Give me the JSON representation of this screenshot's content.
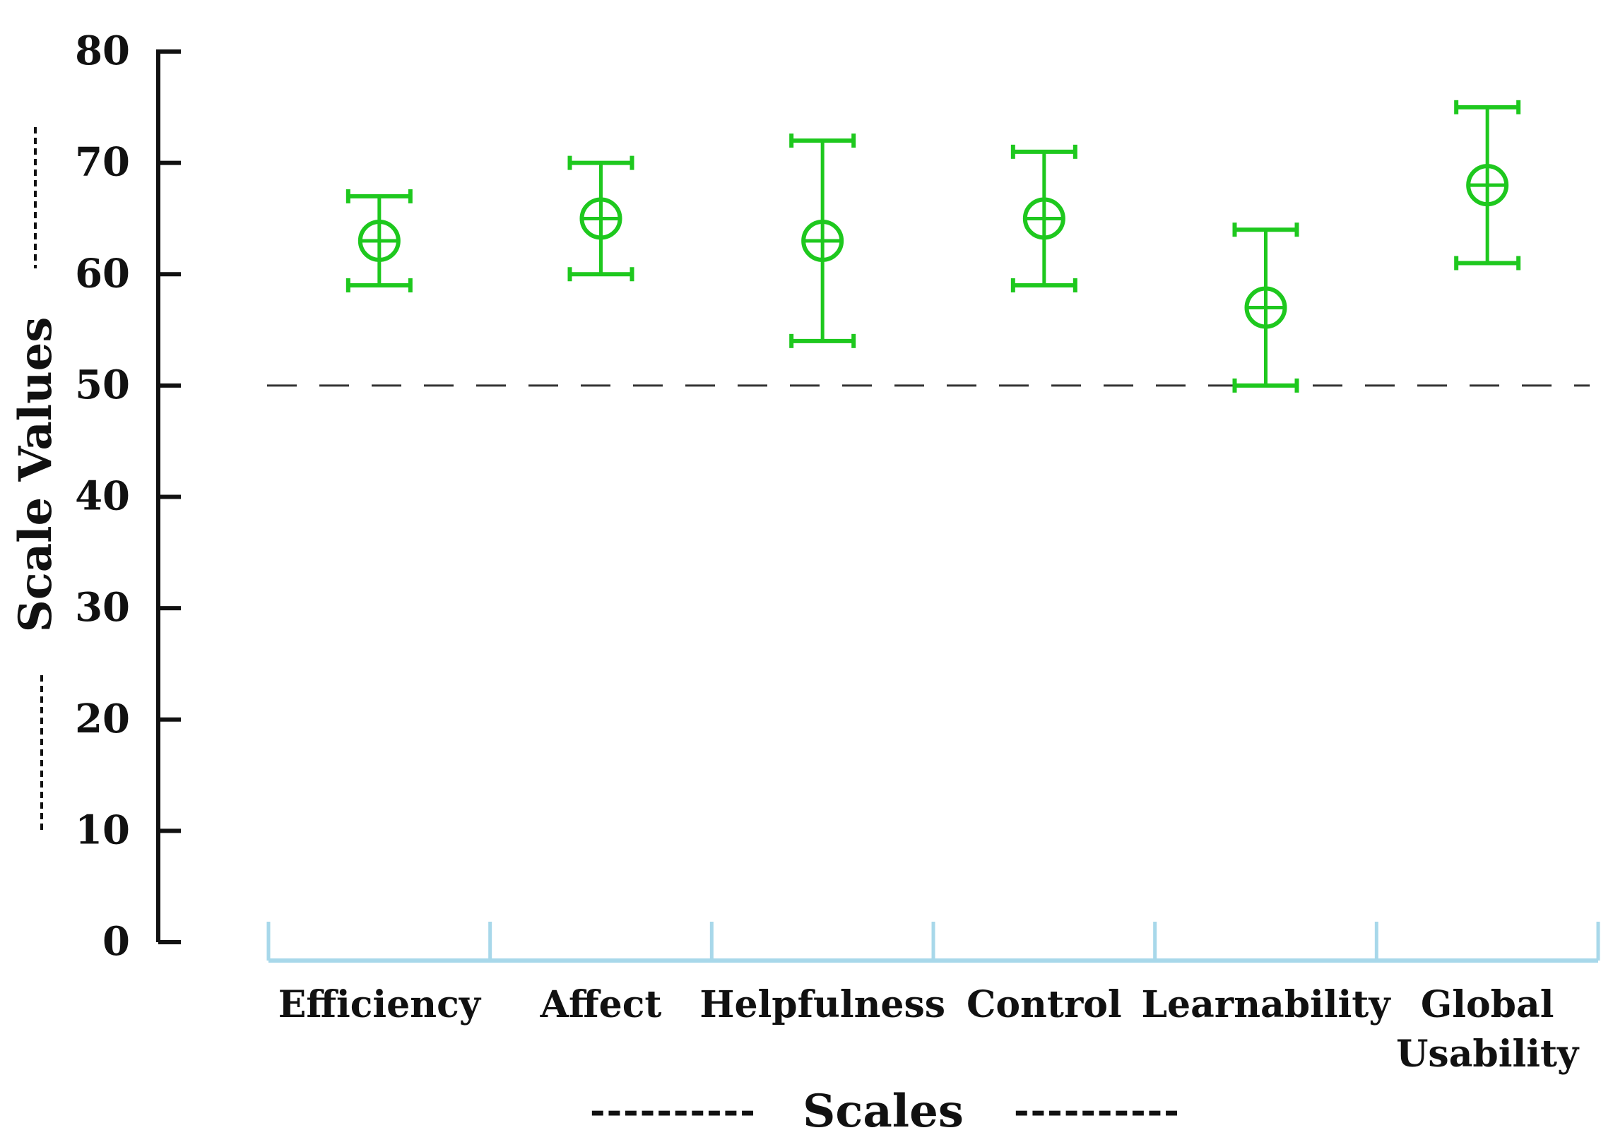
{
  "chart_data": {
    "type": "errorbar",
    "ylabel": "Scale Values",
    "xlabel": "Scales",
    "ylim": [
      0,
      80
    ],
    "yticks": [
      0,
      10,
      20,
      30,
      40,
      50,
      60,
      70,
      80
    ],
    "reference_line": 50,
    "categories": [
      "Efficiency",
      "Affect",
      "Helpfulness",
      "Control",
      "Learnability",
      "Global Usability"
    ],
    "category_lines": [
      [
        "Efficiency"
      ],
      [
        "Affect"
      ],
      [
        "Helpfulness"
      ],
      [
        "Control"
      ],
      [
        "Learnability"
      ],
      [
        "Global",
        "Usability"
      ]
    ],
    "series": [
      {
        "mean": [
          63,
          65,
          63,
          65,
          57,
          68
        ],
        "lower": [
          59,
          60,
          54,
          59,
          50,
          61
        ],
        "upper": [
          67,
          70,
          72,
          71,
          64,
          75
        ]
      }
    ],
    "grid": false,
    "colors": {
      "marker": "#1ec81e",
      "axis": "#111111",
      "category_axis": "#a8d8ea",
      "reference_line": "#333333"
    },
    "axis_decorations": {
      "xlabel_dashes": "----------"
    }
  }
}
